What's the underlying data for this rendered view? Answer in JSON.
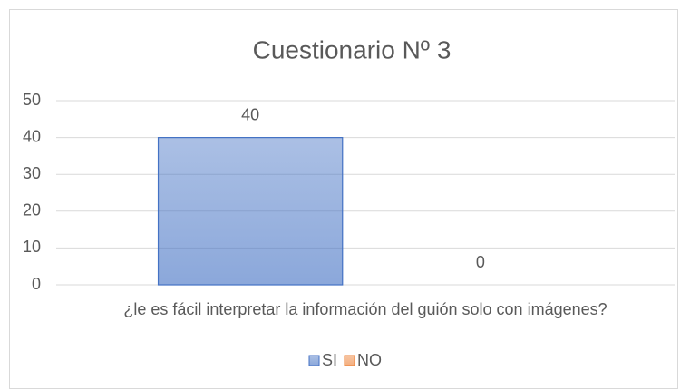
{
  "chart_data": {
    "type": "bar",
    "title": "Cuestionario Nº 3",
    "categories": [
      "¿le es fácil interpretar la información del guión solo con imágenes?"
    ],
    "series": [
      {
        "name": "SI",
        "color": "#4472c4",
        "values": [
          40
        ]
      },
      {
        "name": "NO",
        "color": "#ed7d31",
        "values": [
          0
        ]
      }
    ],
    "ylim": [
      0,
      50
    ],
    "yticks": [
      0,
      10,
      20,
      30,
      40,
      50
    ],
    "grid": true,
    "legend": "bottom"
  }
}
